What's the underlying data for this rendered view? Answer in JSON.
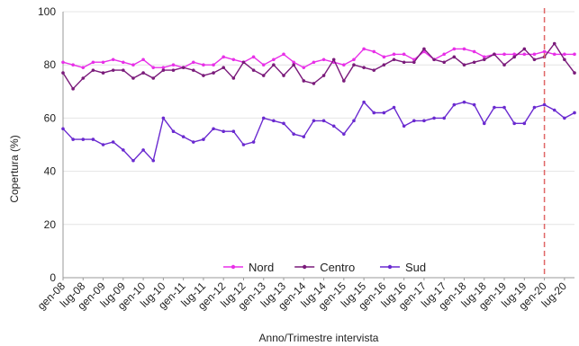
{
  "chart_data": {
    "type": "line",
    "title": "",
    "xlabel": "Anno/Trimestre intervista",
    "ylabel": "Copertura (%)",
    "ylim": [
      0,
      100
    ],
    "yticks": [
      0,
      20,
      40,
      60,
      80,
      100
    ],
    "grid": true,
    "legend_position": "bottom-center",
    "x": [
      "2008-Q1",
      "2008-Q2",
      "2008-Q3",
      "2008-Q4",
      "2009-Q1",
      "2009-Q2",
      "2009-Q3",
      "2009-Q4",
      "2010-Q1",
      "2010-Q2",
      "2010-Q3",
      "2010-Q4",
      "2011-Q1",
      "2011-Q2",
      "2011-Q3",
      "2011-Q4",
      "2012-Q1",
      "2012-Q2",
      "2012-Q3",
      "2012-Q4",
      "2013-Q1",
      "2013-Q2",
      "2013-Q3",
      "2013-Q4",
      "2014-Q1",
      "2014-Q2",
      "2014-Q3",
      "2014-Q4",
      "2015-Q1",
      "2015-Q2",
      "2015-Q3",
      "2015-Q4",
      "2016-Q1",
      "2016-Q2",
      "2016-Q3",
      "2016-Q4",
      "2017-Q1",
      "2017-Q2",
      "2017-Q3",
      "2017-Q4",
      "2018-Q1",
      "2018-Q2",
      "2018-Q3",
      "2018-Q4",
      "2019-Q1",
      "2019-Q2",
      "2019-Q3",
      "2019-Q4",
      "2020-Q1",
      "2020-Q2",
      "2020-Q3",
      "2020-Q4"
    ],
    "tick_labels": [
      "gen-08",
      "lug-08",
      "gen-09",
      "lug-09",
      "gen-10",
      "lug-10",
      "gen-11",
      "lug-11",
      "gen-12",
      "lug-12",
      "gen-13",
      "lug-13",
      "gen-14",
      "lug-14",
      "gen-15",
      "lug-15",
      "gen-16",
      "lug-16",
      "gen-17",
      "lug-17",
      "gen-18",
      "lug-18",
      "gen-19",
      "lug-19",
      "gen-20",
      "lug-20"
    ],
    "vertical_marker": {
      "x": "2020-Q1",
      "color": "#e06666",
      "style": "dashed"
    },
    "series": [
      {
        "name": "Nord",
        "color": "#e830e8",
        "values": [
          81,
          80,
          79,
          81,
          81,
          82,
          81,
          80,
          82,
          79,
          79,
          80,
          79,
          81,
          80,
          80,
          83,
          82,
          81,
          83,
          80,
          82,
          84,
          81,
          79,
          81,
          82,
          81,
          80,
          82,
          86,
          85,
          83,
          84,
          84,
          82,
          85,
          82,
          84,
          86,
          86,
          85,
          83,
          84,
          84,
          84,
          84,
          84,
          85,
          84,
          84,
          84
        ]
      },
      {
        "name": "Centro",
        "color": "#7a1a7a",
        "values": [
          77,
          71,
          75,
          78,
          77,
          78,
          78,
          75,
          77,
          75,
          78,
          78,
          79,
          78,
          76,
          77,
          79,
          75,
          81,
          78,
          76,
          80,
          76,
          80,
          74,
          73,
          76,
          82,
          74,
          80,
          79,
          78,
          80,
          82,
          81,
          81,
          86,
          82,
          81,
          83,
          80,
          81,
          82,
          84,
          80,
          83,
          86,
          82,
          83,
          88,
          82,
          77
        ]
      },
      {
        "name": "Sud",
        "color": "#6a2ad0",
        "values": [
          56,
          52,
          52,
          52,
          50,
          51,
          48,
          44,
          48,
          44,
          60,
          55,
          53,
          51,
          52,
          56,
          55,
          55,
          50,
          51,
          60,
          59,
          58,
          54,
          53,
          59,
          59,
          57,
          54,
          59,
          66,
          62,
          62,
          64,
          57,
          59,
          59,
          60,
          60,
          65,
          66,
          65,
          58,
          64,
          64,
          58,
          58,
          64,
          65,
          63,
          60,
          62
        ]
      }
    ]
  }
}
